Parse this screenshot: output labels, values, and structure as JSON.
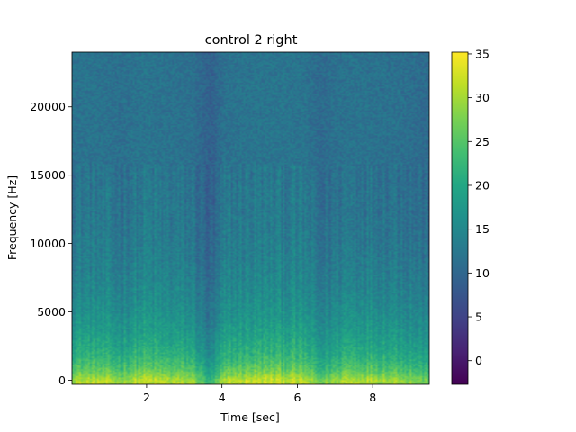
{
  "chart_data": {
    "type": "heatmap",
    "title": "control 2 right",
    "xlabel": "Time [sec]",
    "ylabel": "Frequency [Hz]",
    "xlim": [
      0.02,
      9.5
    ],
    "ylim": [
      -300,
      24000
    ],
    "x_ticks": [
      2,
      4,
      6,
      8
    ],
    "y_ticks": [
      0,
      5000,
      10000,
      15000,
      20000
    ],
    "x_tick_labels": [
      "2",
      "4",
      "6",
      "8"
    ],
    "y_tick_labels": [
      "0",
      "5000",
      "10000",
      "15000",
      "20000"
    ],
    "colormap": "viridis",
    "colorbar": {
      "min": -2.7,
      "max": 35.2,
      "ticks": [
        0,
        5,
        10,
        15,
        20,
        25,
        30,
        35
      ],
      "tick_labels": [
        "0",
        "5",
        "10",
        "15",
        "20",
        "25",
        "30",
        "35"
      ]
    },
    "upper_band_cutoff_hz": 15800,
    "time_envelope": [
      {
        "t": 0.0,
        "level": 0.9
      },
      {
        "t": 0.6,
        "level": 0.95
      },
      {
        "t": 1.3,
        "level": 0.8
      },
      {
        "t": 1.9,
        "level": 1.0
      },
      {
        "t": 2.6,
        "level": 0.9
      },
      {
        "t": 3.2,
        "level": 0.85
      },
      {
        "t": 3.7,
        "level": 0.25
      },
      {
        "t": 4.1,
        "level": 0.9
      },
      {
        "t": 4.9,
        "level": 1.0
      },
      {
        "t": 5.6,
        "level": 1.0
      },
      {
        "t": 6.2,
        "level": 0.95
      },
      {
        "t": 6.6,
        "level": 0.6
      },
      {
        "t": 7.3,
        "level": 0.95
      },
      {
        "t": 8.0,
        "level": 0.9
      },
      {
        "t": 8.7,
        "level": 0.85
      },
      {
        "t": 9.5,
        "level": 0.6
      }
    ]
  }
}
